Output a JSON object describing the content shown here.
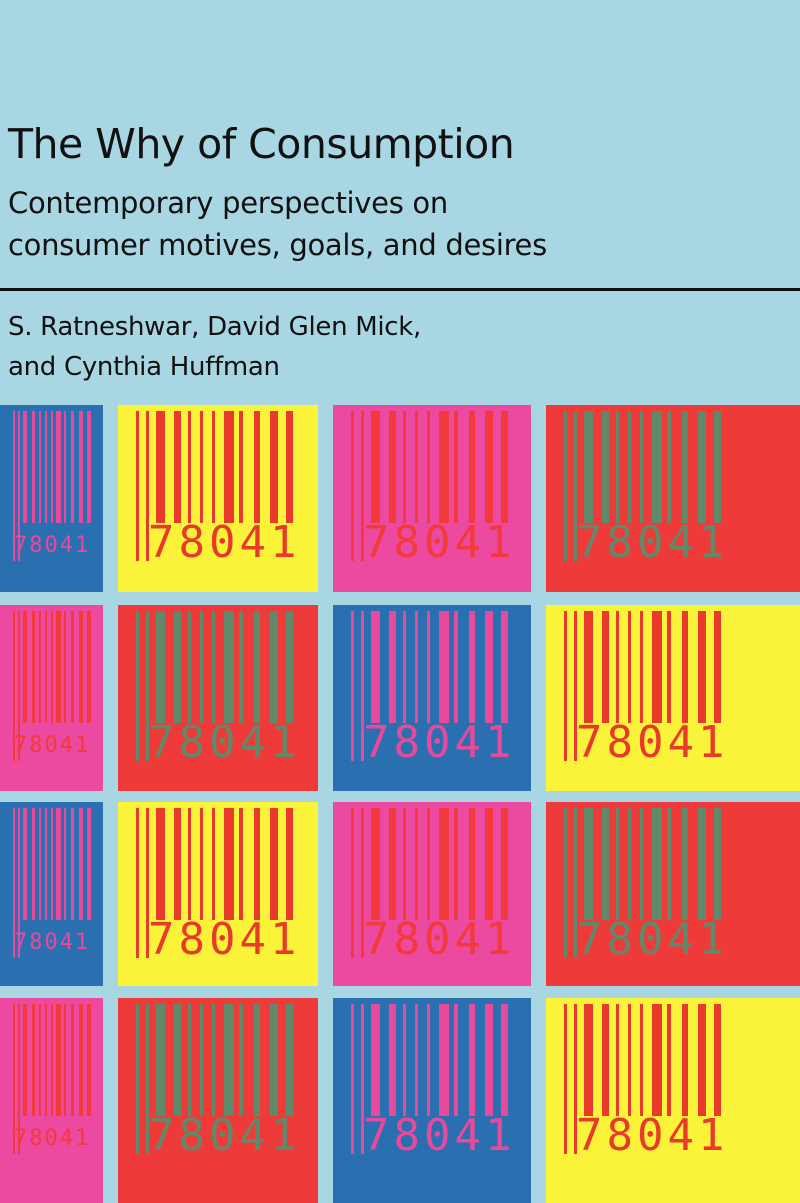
{
  "cover": {
    "title": "The Why of Consumption",
    "subtitle_line1": "Contemporary perspectives on",
    "subtitle_line2": "consumer motives, goals, and desires",
    "authors_line1": "S. Ratneshwar, David Glen Mick,",
    "authors_line2": "and Cynthia Huffman",
    "background_color": "#a9d6e3"
  },
  "barcode_number": "78041",
  "tile_rows": [
    [
      {
        "bg": "#2a6fb0",
        "fg": "#e8499a"
      },
      {
        "bg": "#fbf23a",
        "fg": "#e83a2a"
      },
      {
        "bg": "#ec4aa0",
        "fg": "#f23a3a"
      },
      {
        "bg": "#ef3a3a",
        "fg": "#5f8a6a"
      }
    ],
    [
      {
        "bg": "#ec4aa0",
        "fg": "#f23a3a"
      },
      {
        "bg": "#ef3a3a",
        "fg": "#5f8a6a"
      },
      {
        "bg": "#2a6fb0",
        "fg": "#e8499a"
      },
      {
        "bg": "#fbf23a",
        "fg": "#e83a2a"
      }
    ],
    [
      {
        "bg": "#2a6fb0",
        "fg": "#e8499a"
      },
      {
        "bg": "#fbf23a",
        "fg": "#e83a2a"
      },
      {
        "bg": "#ec4aa0",
        "fg": "#f23a3a"
      },
      {
        "bg": "#ef3a3a",
        "fg": "#5f8a6a"
      }
    ],
    [
      {
        "bg": "#ec4aa0",
        "fg": "#f23a3a"
      },
      {
        "bg": "#ef3a3a",
        "fg": "#5f8a6a"
      },
      {
        "bg": "#2a6fb0",
        "fg": "#e8499a"
      },
      {
        "bg": "#fbf23a",
        "fg": "#e83a2a"
      }
    ]
  ]
}
